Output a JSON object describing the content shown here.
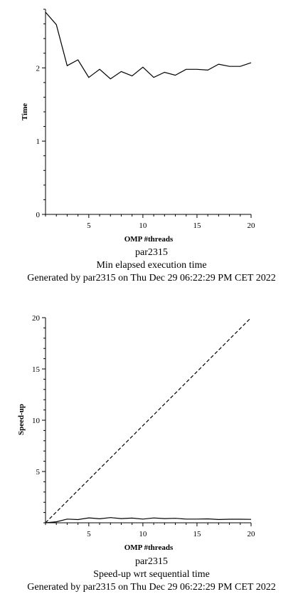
{
  "chart_data": [
    {
      "type": "line",
      "xlabel": "OMP #threads",
      "ylabel": "Time",
      "xlim": [
        1,
        20
      ],
      "ylim": [
        0,
        2.8
      ],
      "xticks": [
        5,
        10,
        15,
        20
      ],
      "yticks": [
        0,
        1,
        2
      ],
      "series": [
        {
          "x": [
            1,
            2,
            3,
            4,
            5,
            6,
            7,
            8,
            9,
            10,
            11,
            12,
            13,
            14,
            15,
            16,
            17,
            18,
            19,
            20
          ],
          "y": [
            2.76,
            2.59,
            2.03,
            2.11,
            1.87,
            1.98,
            1.85,
            1.95,
            1.89,
            2.01,
            1.87,
            1.94,
            1.9,
            1.98,
            1.98,
            1.97,
            2.05,
            2.02,
            2.02,
            2.07
          ],
          "style": "solid"
        }
      ],
      "captions": [
        "par2315",
        "Min elapsed execution time",
        "Generated by par2315 on Thu Dec 29 06:22:29 PM CET 2022"
      ]
    },
    {
      "type": "line",
      "xlabel": "OMP #threads",
      "ylabel": "Speed-up",
      "xlim": [
        1,
        20
      ],
      "ylim": [
        0,
        20
      ],
      "xticks": [
        5,
        10,
        15,
        20
      ],
      "yticks": [
        5,
        10,
        15,
        20
      ],
      "series": [
        {
          "x": [
            1,
            2,
            3,
            4,
            5,
            6,
            7,
            8,
            9,
            10,
            11,
            12,
            13,
            14,
            15,
            16,
            17,
            18,
            19,
            20
          ],
          "y": [
            0,
            0.1,
            0.36,
            0.31,
            0.48,
            0.39,
            0.51,
            0.41,
            0.46,
            0.36,
            0.47,
            0.41,
            0.44,
            0.36,
            0.36,
            0.38,
            0.32,
            0.35,
            0.35,
            0.33
          ],
          "style": "solid"
        },
        {
          "x": [
            1,
            20
          ],
          "y": [
            0,
            20
          ],
          "style": "dashed"
        }
      ],
      "captions": [
        "par2315",
        "Speed-up wrt sequential time",
        "Generated by par2315 on Thu Dec 29 06:22:29 PM CET 2022"
      ]
    }
  ]
}
